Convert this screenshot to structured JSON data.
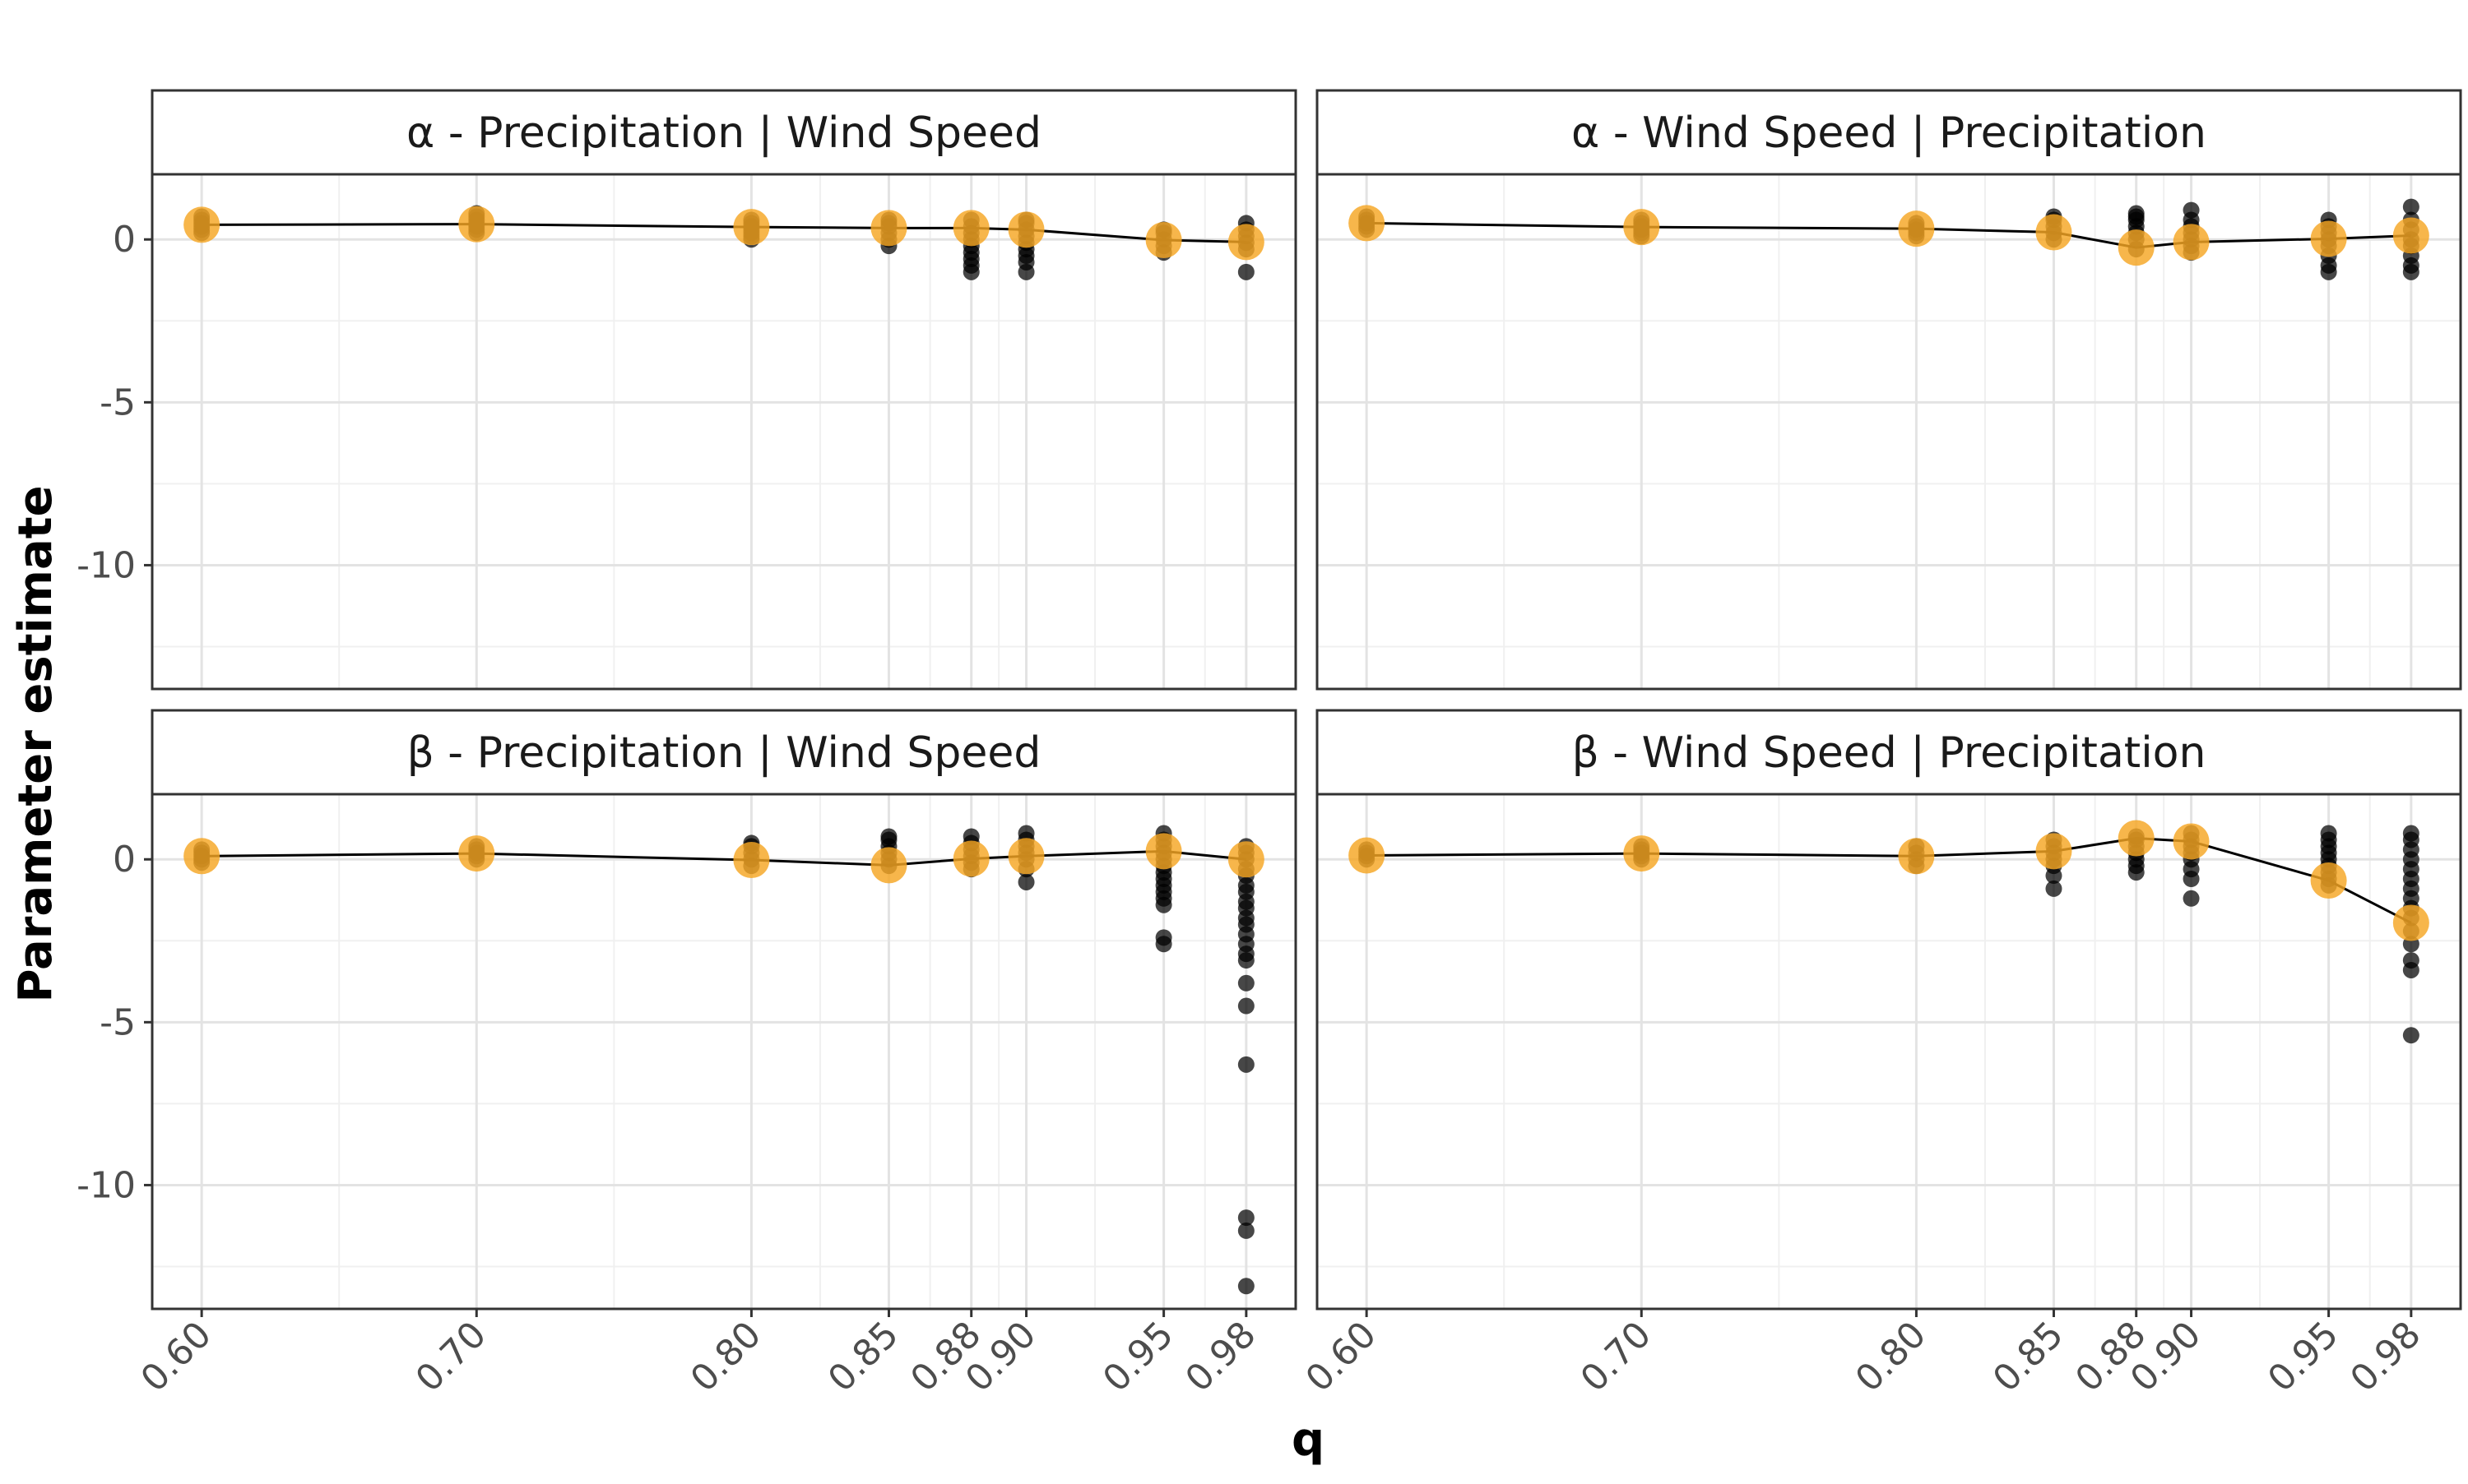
{
  "chart_data": {
    "type": "scatter",
    "xlabel": "q",
    "ylabel": "Parameter estimate",
    "x_ticks": [
      "0.60",
      "0.70",
      "0.80",
      "0.85",
      "0.88",
      "0.90",
      "0.95",
      "0.98"
    ],
    "y_ticks": [
      "0",
      "-5",
      "-10"
    ],
    "ylim": [
      -13.8,
      2.0
    ],
    "xlim": [
      0.582,
      0.998
    ],
    "grid": true,
    "colors": {
      "summary": "#F5A623",
      "points": "#000000",
      "line": "#000000"
    },
    "panels": [
      {
        "title": "α -  Precipitation | Wind Speed",
        "summary": [
          {
            "q": 0.6,
            "value": 0.45
          },
          {
            "q": 0.7,
            "value": 0.47
          },
          {
            "q": 0.8,
            "value": 0.38
          },
          {
            "q": 0.85,
            "value": 0.35
          },
          {
            "q": 0.88,
            "value": 0.35
          },
          {
            "q": 0.9,
            "value": 0.3
          },
          {
            "q": 0.95,
            "value": -0.02
          },
          {
            "q": 0.98,
            "value": -0.08
          }
        ],
        "points": [
          {
            "q": 0.6,
            "values": [
              0.2,
              0.3,
              0.4,
              0.5,
              0.6,
              0.7
            ]
          },
          {
            "q": 0.7,
            "values": [
              0.2,
              0.3,
              0.4,
              0.5,
              0.6,
              0.7,
              0.8
            ]
          },
          {
            "q": 0.8,
            "values": [
              0.0,
              0.1,
              0.2,
              0.3,
              0.4,
              0.5,
              0.6
            ]
          },
          {
            "q": 0.85,
            "values": [
              -0.2,
              0.0,
              0.2,
              0.4,
              0.5,
              0.6
            ]
          },
          {
            "q": 0.88,
            "values": [
              -1.0,
              -0.8,
              -0.6,
              -0.4,
              -0.2,
              0.0,
              0.2,
              0.4,
              0.6
            ]
          },
          {
            "q": 0.9,
            "values": [
              -1.0,
              -0.7,
              -0.5,
              -0.3,
              -0.1,
              0.1,
              0.3,
              0.5,
              0.6
            ]
          },
          {
            "q": 0.95,
            "values": [
              -0.4,
              -0.2,
              0.0,
              0.2,
              0.3
            ]
          },
          {
            "q": 0.98,
            "values": [
              -1.0,
              -0.3,
              -0.1,
              0.1,
              0.3,
              0.5
            ]
          }
        ]
      },
      {
        "title": "α -  Wind Speed | Precipitation",
        "summary": [
          {
            "q": 0.6,
            "value": 0.5
          },
          {
            "q": 0.7,
            "value": 0.38
          },
          {
            "q": 0.8,
            "value": 0.33
          },
          {
            "q": 0.85,
            "value": 0.22
          },
          {
            "q": 0.88,
            "value": -0.25
          },
          {
            "q": 0.9,
            "value": -0.08
          },
          {
            "q": 0.95,
            "value": 0.02
          },
          {
            "q": 0.98,
            "value": 0.12
          }
        ],
        "points": [
          {
            "q": 0.6,
            "values": [
              0.3,
              0.4,
              0.5,
              0.6,
              0.7
            ]
          },
          {
            "q": 0.7,
            "values": [
              0.1,
              0.2,
              0.3,
              0.4,
              0.5,
              0.6
            ]
          },
          {
            "q": 0.8,
            "values": [
              0.1,
              0.2,
              0.3,
              0.4,
              0.5
            ]
          },
          {
            "q": 0.85,
            "values": [
              0.0,
              0.2,
              0.4,
              0.6,
              0.7
            ]
          },
          {
            "q": 0.88,
            "values": [
              -0.3,
              0.0,
              0.2,
              0.4,
              0.6,
              0.7,
              0.8
            ]
          },
          {
            "q": 0.9,
            "values": [
              -0.4,
              -0.2,
              0.0,
              0.2,
              0.4,
              0.6,
              0.9
            ]
          },
          {
            "q": 0.95,
            "values": [
              -1.0,
              -0.8,
              -0.5,
              -0.2,
              0.0,
              0.2,
              0.4,
              0.6
            ]
          },
          {
            "q": 0.98,
            "values": [
              -1.0,
              -0.8,
              -0.5,
              -0.2,
              0.0,
              0.3,
              0.6,
              1.0
            ]
          }
        ]
      },
      {
        "title": "β -  Precipitation | Wind Speed",
        "summary": [
          {
            "q": 0.6,
            "value": 0.1
          },
          {
            "q": 0.7,
            "value": 0.18
          },
          {
            "q": 0.8,
            "value": -0.02
          },
          {
            "q": 0.85,
            "value": -0.18
          },
          {
            "q": 0.88,
            "value": 0.02
          },
          {
            "q": 0.9,
            "value": 0.1
          },
          {
            "q": 0.95,
            "value": 0.25
          },
          {
            "q": 0.98,
            "value": 0.0
          }
        ],
        "points": [
          {
            "q": 0.6,
            "values": [
              -0.1,
              0.0,
              0.1,
              0.2,
              0.3
            ]
          },
          {
            "q": 0.7,
            "values": [
              0.0,
              0.1,
              0.2,
              0.3,
              0.4
            ]
          },
          {
            "q": 0.8,
            "values": [
              -0.2,
              0.0,
              0.2,
              0.4,
              0.5
            ]
          },
          {
            "q": 0.85,
            "values": [
              -0.2,
              0.0,
              0.2,
              0.4,
              0.6,
              0.7
            ]
          },
          {
            "q": 0.88,
            "values": [
              -0.3,
              -0.1,
              0.1,
              0.3,
              0.5,
              0.7
            ]
          },
          {
            "q": 0.9,
            "values": [
              -0.7,
              -0.3,
              0.0,
              0.2,
              0.4,
              0.6,
              0.8
            ]
          },
          {
            "q": 0.95,
            "values": [
              -2.6,
              -2.4,
              -1.4,
              -1.2,
              -1.0,
              -0.8,
              -0.6,
              -0.4,
              -0.2,
              0.0,
              0.2,
              0.4,
              0.6,
              0.8
            ]
          },
          {
            "q": 0.98,
            "values": [
              -13.1,
              -11.4,
              -11.0,
              -6.3,
              -4.5,
              -3.8,
              -3.1,
              -2.9,
              -2.6,
              -2.3,
              -2.0,
              -1.8,
              -1.5,
              -1.3,
              -1.0,
              -0.8,
              -0.5,
              -0.3,
              0.0,
              0.2,
              0.4
            ]
          }
        ]
      },
      {
        "title": "β -  Wind Speed | Precipitation",
        "summary": [
          {
            "q": 0.6,
            "value": 0.12
          },
          {
            "q": 0.7,
            "value": 0.18
          },
          {
            "q": 0.8,
            "value": 0.1
          },
          {
            "q": 0.85,
            "value": 0.25
          },
          {
            "q": 0.88,
            "value": 0.65
          },
          {
            "q": 0.9,
            "value": 0.55
          },
          {
            "q": 0.95,
            "value": -0.65
          },
          {
            "q": 0.98,
            "value": -1.95
          }
        ],
        "points": [
          {
            "q": 0.6,
            "values": [
              0.0,
              0.1,
              0.2,
              0.3
            ]
          },
          {
            "q": 0.7,
            "values": [
              0.0,
              0.1,
              0.2,
              0.3,
              0.4
            ]
          },
          {
            "q": 0.8,
            "values": [
              -0.2,
              0.0,
              0.2,
              0.4
            ]
          },
          {
            "q": 0.85,
            "values": [
              -0.9,
              -0.5,
              -0.2,
              0.0,
              0.2,
              0.4,
              0.6
            ]
          },
          {
            "q": 0.88,
            "values": [
              -0.4,
              -0.2,
              0.0,
              0.2,
              0.4,
              0.6,
              0.7
            ]
          },
          {
            "q": 0.9,
            "values": [
              -1.2,
              -0.6,
              -0.3,
              0.0,
              0.2,
              0.4,
              0.6,
              0.8
            ]
          },
          {
            "q": 0.95,
            "values": [
              -0.8,
              -0.6,
              -0.4,
              -0.2,
              0.0,
              0.2,
              0.4,
              0.6,
              0.8
            ]
          },
          {
            "q": 0.98,
            "values": [
              -5.4,
              -3.4,
              -3.1,
              -2.6,
              -2.2,
              -1.8,
              -1.5,
              -1.2,
              -0.9,
              -0.6,
              -0.3,
              0.0,
              0.3,
              0.6,
              0.8
            ]
          }
        ]
      }
    ]
  }
}
